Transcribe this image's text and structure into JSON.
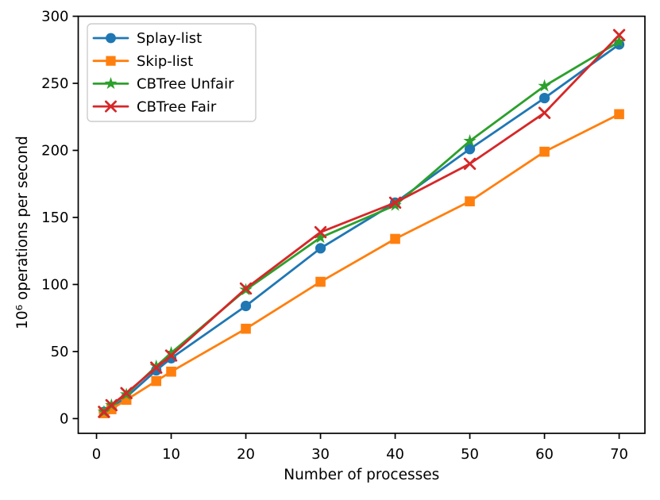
{
  "chart_data": {
    "type": "line",
    "title": "",
    "xlabel": "Number of processes",
    "ylabel": "10⁶ operations per second",
    "x": [
      1,
      2,
      4,
      8,
      10,
      20,
      30,
      40,
      50,
      60,
      70
    ],
    "series": [
      {
        "name": "Splay-list",
        "color": "#1f77b4",
        "marker": "circle",
        "values": [
          5,
          8,
          16,
          36,
          45,
          84,
          127,
          161,
          201,
          239,
          279
        ]
      },
      {
        "name": "Skip-list",
        "color": "#ff7f0e",
        "marker": "square",
        "values": [
          4,
          7,
          14,
          28,
          35,
          67,
          102,
          134,
          162,
          199,
          227
        ]
      },
      {
        "name": "CBTree Unfair",
        "color": "#2ca02c",
        "marker": "star",
        "values": [
          5,
          10,
          18,
          39,
          49,
          96,
          135,
          159,
          207,
          248,
          281
        ]
      },
      {
        "name": "CBTree Fair",
        "color": "#d62728",
        "marker": "x",
        "values": [
          5,
          10,
          19,
          38,
          47,
          97,
          139,
          161,
          190,
          228,
          286
        ]
      }
    ],
    "xticks": [
      0,
      10,
      20,
      30,
      40,
      50,
      60,
      70
    ],
    "yticks": [
      0,
      50,
      100,
      150,
      200,
      250,
      300
    ],
    "xlim": [
      -2.45,
      73.45
    ],
    "ylim": [
      -11,
      300
    ],
    "grid": false,
    "legend_position": "upper left",
    "axis_color": "#000000",
    "background_color": "#ffffff",
    "legend_border_color": "#cccccc"
  }
}
